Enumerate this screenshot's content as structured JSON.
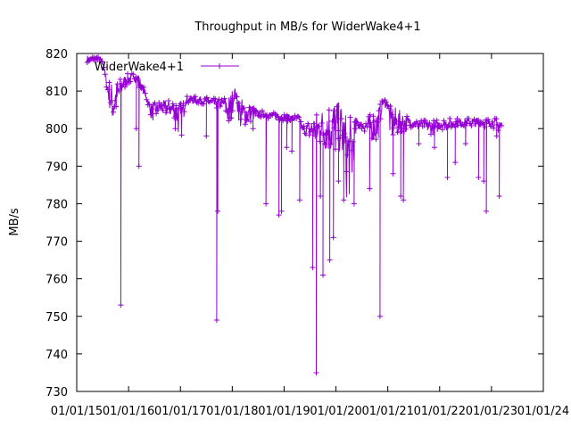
{
  "chart_data": {
    "type": "line",
    "title": "Throughput in MB/s for WiderWake4+1",
    "xlabel": "",
    "ylabel": "MB/s",
    "ylim": [
      730,
      820
    ],
    "y_ticks": [
      730,
      740,
      750,
      760,
      770,
      780,
      790,
      800,
      810,
      820
    ],
    "xlim": [
      2015,
      2024
    ],
    "x_ticks": [
      {
        "value": 2015,
        "label": "01/01/15"
      },
      {
        "value": 2016,
        "label": "01/01/16"
      },
      {
        "value": 2017,
        "label": "01/01/17"
      },
      {
        "value": 2018,
        "label": "01/01/18"
      },
      {
        "value": 2019,
        "label": "01/01/19"
      },
      {
        "value": 2020,
        "label": "01/01/20"
      },
      {
        "value": 2021,
        "label": "01/01/21"
      },
      {
        "value": 2022,
        "label": "01/01/22"
      },
      {
        "value": 2023,
        "label": "01/01/23"
      },
      {
        "value": 2024,
        "label": "01/01/24"
      }
    ],
    "legend": {
      "position": "top-left",
      "label": "WiderWake4+1"
    },
    "series": [
      {
        "name": "WiderWake4+1",
        "color": "#9400d3",
        "baseline": [
          [
            2015.2,
            818.5
          ],
          [
            2015.5,
            818
          ],
          [
            2015.6,
            810
          ],
          [
            2015.7,
            806
          ],
          [
            2015.9,
            812
          ],
          [
            2016.1,
            814
          ],
          [
            2016.3,
            810
          ],
          [
            2016.45,
            804
          ],
          [
            2016.6,
            805.5
          ],
          [
            2016.9,
            805
          ],
          [
            2017.0,
            801
          ],
          [
            2017.1,
            807.5
          ],
          [
            2017.4,
            807.5
          ],
          [
            2017.7,
            806.5
          ],
          [
            2017.85,
            806.5
          ],
          [
            2017.95,
            803.5
          ],
          [
            2018.05,
            810
          ],
          [
            2018.15,
            803.5
          ],
          [
            2018.5,
            804
          ],
          [
            2018.9,
            803
          ],
          [
            2019.3,
            802.5
          ],
          [
            2019.35,
            799.5
          ],
          [
            2019.8,
            799.5
          ],
          [
            2020.1,
            799.5
          ],
          [
            2020.2,
            791.5
          ],
          [
            2020.3,
            791.5
          ],
          [
            2020.35,
            797
          ],
          [
            2020.4,
            801
          ],
          [
            2020.8,
            800
          ],
          [
            2020.9,
            807
          ],
          [
            2021.0,
            806.5
          ],
          [
            2021.05,
            801
          ],
          [
            2021.5,
            801.5
          ],
          [
            2021.9,
            800
          ],
          [
            2022.0,
            801
          ],
          [
            2022.5,
            801.5
          ],
          [
            2023.0,
            801.5
          ],
          [
            2023.2,
            800.5
          ]
        ],
        "dips": [
          [
            2015.85,
            753
          ],
          [
            2016.2,
            790
          ],
          [
            2016.15,
            800
          ],
          [
            2016.9,
            800
          ],
          [
            2017.5,
            798
          ],
          [
            2017.7,
            749
          ],
          [
            2017.72,
            778
          ],
          [
            2018.4,
            800
          ],
          [
            2018.65,
            780
          ],
          [
            2018.9,
            777
          ],
          [
            2018.95,
            778
          ],
          [
            2019.05,
            795
          ],
          [
            2019.15,
            794
          ],
          [
            2019.3,
            781
          ],
          [
            2019.55,
            763
          ],
          [
            2019.62,
            735
          ],
          [
            2019.7,
            782
          ],
          [
            2019.75,
            761
          ],
          [
            2019.88,
            765
          ],
          [
            2019.95,
            771
          ],
          [
            2020.05,
            786
          ],
          [
            2020.15,
            781
          ],
          [
            2020.35,
            780
          ],
          [
            2020.65,
            784
          ],
          [
            2020.85,
            750
          ],
          [
            2021.1,
            788
          ],
          [
            2021.25,
            782
          ],
          [
            2021.3,
            781
          ],
          [
            2021.6,
            796
          ],
          [
            2021.9,
            795
          ],
          [
            2022.15,
            787
          ],
          [
            2022.3,
            791
          ],
          [
            2022.5,
            796
          ],
          [
            2022.75,
            787
          ],
          [
            2022.85,
            786
          ],
          [
            2022.9,
            778
          ],
          [
            2023.1,
            798
          ],
          [
            2023.15,
            782
          ],
          [
            2023.25,
            775
          ]
        ],
        "upper_band": [
          [
            2015.55,
            814
          ],
          [
            2015.7,
            813
          ],
          [
            2016.0,
            815
          ],
          [
            2016.2,
            815
          ],
          [
            2016.35,
            807
          ],
          [
            2017.2,
            809
          ],
          [
            2017.8,
            808
          ],
          [
            2018.0,
            811
          ],
          [
            2018.5,
            805
          ],
          [
            2019.4,
            801.5
          ],
          [
            2019.95,
            809.5
          ],
          [
            2020.5,
            802
          ],
          [
            2020.95,
            808.5
          ],
          [
            2021.5,
            802.5
          ],
          [
            2022.2,
            803
          ],
          [
            2022.8,
            803
          ],
          [
            2023.2,
            803
          ]
        ]
      }
    ]
  }
}
